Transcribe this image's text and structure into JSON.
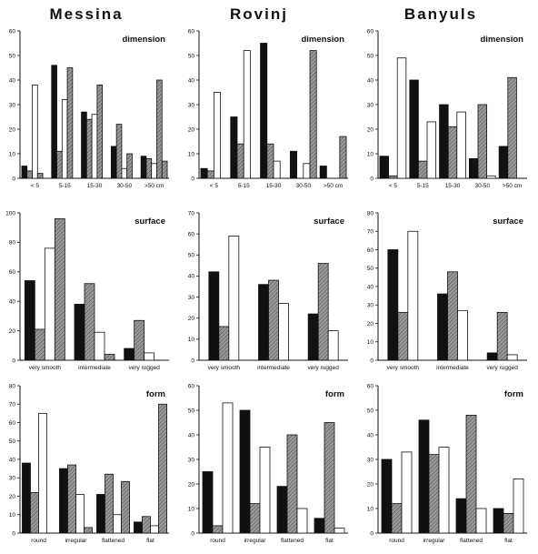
{
  "sites": [
    "Messina",
    "Rovinj",
    "Banyuls"
  ],
  "chart_data": [
    {
      "type": "bar",
      "site": "Messina",
      "title": "dimension",
      "categories": [
        "< 5",
        "5-15",
        "15-30",
        "30-50",
        ">50 cm"
      ],
      "ylim": [
        0,
        60
      ],
      "yticks": [
        0,
        10,
        20,
        30,
        40,
        50,
        60
      ],
      "series": [
        {
          "values": [
            5,
            46,
            27,
            13,
            9
          ]
        },
        {
          "values": [
            3,
            11,
            24,
            22,
            8
          ]
        },
        {
          "values": [
            38,
            32,
            26,
            4,
            6
          ]
        },
        {
          "values": [
            2,
            45,
            38,
            10,
            40
          ]
        },
        {
          "values": [
            0,
            0,
            0,
            0,
            7
          ]
        }
      ]
    },
    {
      "type": "bar",
      "site": "Rovinj",
      "title": "dimension",
      "categories": [
        "< 5",
        "5-15",
        "15-30",
        "30-50",
        ">50 cm"
      ],
      "ylim": [
        0,
        60
      ],
      "yticks": [
        0,
        10,
        20,
        30,
        40,
        50,
        60
      ],
      "series": [
        {
          "values": [
            4,
            25,
            55,
            11,
            5
          ]
        },
        {
          "values": [
            3,
            14,
            14,
            0,
            0
          ]
        },
        {
          "values": [
            35,
            52,
            7,
            6,
            0
          ]
        },
        {
          "values": [
            0,
            0,
            0,
            52,
            17
          ]
        }
      ]
    },
    {
      "type": "bar",
      "site": "Banyuls",
      "title": "dimension",
      "categories": [
        "< 5",
        "5-15",
        "15-30",
        "30-50",
        ">50 cm"
      ],
      "ylim": [
        0,
        60
      ],
      "yticks": [
        0,
        10,
        20,
        30,
        40,
        50,
        60
      ],
      "series": [
        {
          "values": [
            9,
            40,
            30,
            8,
            13
          ]
        },
        {
          "values": [
            1,
            7,
            21,
            30,
            41
          ]
        },
        {
          "values": [
            49,
            23,
            27,
            1,
            0
          ]
        }
      ]
    },
    {
      "type": "bar",
      "site": "Messina",
      "title": "surface",
      "categories": [
        "very smooth",
        "intermediate",
        "very rugged"
      ],
      "ylim": [
        0,
        100
      ],
      "yticks": [
        0,
        20,
        40,
        60,
        80,
        100
      ],
      "series": [
        {
          "values": [
            54,
            38,
            8
          ]
        },
        {
          "values": [
            21,
            52,
            27
          ]
        },
        {
          "values": [
            76,
            19,
            5
          ]
        },
        {
          "values": [
            96,
            4,
            0
          ]
        }
      ]
    },
    {
      "type": "bar",
      "site": "Rovinj",
      "title": "surface",
      "categories": [
        "very smooth",
        "intermediate",
        "very rugged"
      ],
      "ylim": [
        0,
        70
      ],
      "yticks": [
        0,
        10,
        20,
        30,
        40,
        50,
        60,
        70
      ],
      "series": [
        {
          "values": [
            42,
            36,
            22
          ]
        },
        {
          "values": [
            16,
            38,
            46
          ]
        },
        {
          "values": [
            59,
            27,
            14
          ]
        }
      ]
    },
    {
      "type": "bar",
      "site": "Banyuls",
      "title": "surface",
      "categories": [
        "very smooth",
        "intermediate",
        "very rugged"
      ],
      "ylim": [
        0,
        80
      ],
      "yticks": [
        0,
        10,
        20,
        30,
        40,
        50,
        60,
        70,
        80
      ],
      "series": [
        {
          "values": [
            60,
            36,
            4
          ]
        },
        {
          "values": [
            26,
            48,
            26
          ]
        },
        {
          "values": [
            70,
            27,
            3
          ]
        }
      ]
    },
    {
      "type": "bar",
      "site": "Messina",
      "title": "form",
      "categories": [
        "round",
        "irregular",
        "flattened",
        "flat"
      ],
      "ylim": [
        0,
        80
      ],
      "yticks": [
        0,
        10,
        20,
        30,
        40,
        50,
        60,
        70,
        80
      ],
      "series": [
        {
          "values": [
            38,
            35,
            21,
            6
          ]
        },
        {
          "values": [
            22,
            37,
            32,
            9
          ]
        },
        {
          "values": [
            65,
            21,
            10,
            4
          ]
        },
        {
          "values": [
            0,
            3,
            28,
            70
          ]
        }
      ]
    },
    {
      "type": "bar",
      "site": "Rovinj",
      "title": "form",
      "categories": [
        "round",
        "irregular",
        "flattened",
        "flat"
      ],
      "ylim": [
        0,
        60
      ],
      "yticks": [
        0,
        10,
        20,
        30,
        40,
        50,
        60
      ],
      "series": [
        {
          "values": [
            25,
            50,
            19,
            6
          ]
        },
        {
          "values": [
            3,
            12,
            40,
            45
          ]
        },
        {
          "values": [
            53,
            35,
            10,
            2
          ]
        }
      ]
    },
    {
      "type": "bar",
      "site": "Banyuls",
      "title": "form",
      "categories": [
        "round",
        "irregular",
        "flattened",
        "flat"
      ],
      "ylim": [
        0,
        60
      ],
      "yticks": [
        0,
        10,
        20,
        30,
        40,
        50,
        60
      ],
      "series": [
        {
          "values": [
            30,
            46,
            14,
            10
          ]
        },
        {
          "values": [
            12,
            32,
            48,
            8
          ]
        },
        {
          "values": [
            33,
            35,
            10,
            22
          ]
        }
      ]
    }
  ],
  "series_styles": {
    "Messina-dimension": [
      "black",
      "gray",
      "white",
      "gray",
      "gray"
    ],
    "Rovinj-dimension": [
      "black",
      "gray",
      "white",
      "gray"
    ],
    "Banyuls-dimension": [
      "black",
      "gray",
      "white"
    ],
    "Messina-surface": [
      "black",
      "gray",
      "white",
      "gray"
    ],
    "Rovinj-surface": [
      "black",
      "gray",
      "white"
    ],
    "Banyuls-surface": [
      "black",
      "gray",
      "white"
    ],
    "Messina-form": [
      "black",
      "gray",
      "white",
      "gray"
    ],
    "Rovinj-form": [
      "black",
      "gray",
      "white"
    ],
    "Banyuls-form": [
      "black",
      "gray",
      "white"
    ]
  },
  "colors": {
    "black": "#111111",
    "gray": "#8a8a8a",
    "white": "#ffffff",
    "stroke": "#111111"
  }
}
